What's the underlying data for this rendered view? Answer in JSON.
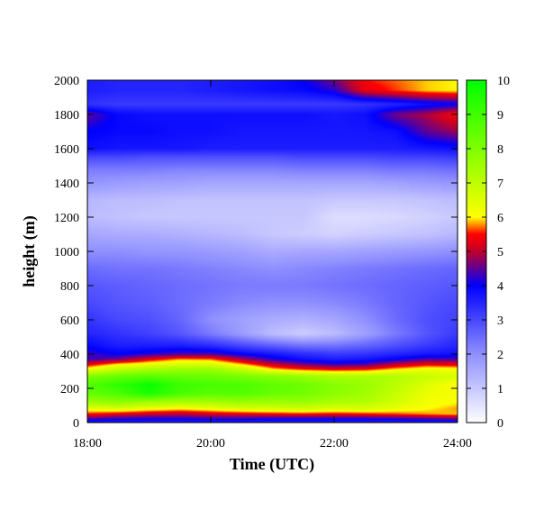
{
  "chart_data": {
    "type": "heatmap",
    "title": "",
    "xlabel": "Time (UTC)",
    "ylabel": "height (m)",
    "xlim": [
      "18:00",
      "24:00"
    ],
    "ylim": [
      0,
      2000
    ],
    "x_ticks": [
      "18:00",
      "20:00",
      "22:00",
      "24:00"
    ],
    "y_ticks": [
      0,
      200,
      400,
      600,
      800,
      1000,
      1200,
      1400,
      1600,
      1800,
      2000
    ],
    "colorbar": {
      "range": [
        0,
        10
      ],
      "ticks": [
        0,
        1,
        2,
        3,
        4,
        5,
        6,
        7,
        8,
        9,
        10
      ],
      "colors": [
        {
          "value": 0,
          "color": "#ffffff"
        },
        {
          "value": 2,
          "color": "#9090ff"
        },
        {
          "value": 4,
          "color": "#0000ff"
        },
        {
          "value": 5,
          "color": "#c0002c"
        },
        {
          "value": 5.5,
          "color": "#ff0000"
        },
        {
          "value": 6,
          "color": "#ffff00"
        },
        {
          "value": 10,
          "color": "#00ff00"
        }
      ]
    },
    "hours": [
      18,
      18.5,
      19,
      19.5,
      20,
      20.5,
      21,
      21.5,
      22,
      22.5,
      23,
      23.5,
      24
    ],
    "profiles": [
      {
        "height": 0,
        "values": [
          3.5,
          3.5,
          3.5,
          3.5,
          3.5,
          3.5,
          3.5,
          3.5,
          3.5,
          3.5,
          3.5,
          3.5,
          3.5
        ]
      },
      {
        "height": 25,
        "values": [
          4.5,
          4.3,
          4.2,
          4.2,
          4.3,
          4.3,
          4.2,
          4.2,
          4.2,
          4.2,
          4.3,
          4.5,
          4.7
        ]
      },
      {
        "height": 50,
        "values": [
          5.5,
          5.3,
          5.1,
          5.0,
          5.2,
          5.3,
          5.4,
          5.5,
          5.4,
          5.5,
          5.6,
          5.8,
          5.9
        ]
      },
      {
        "height": 80,
        "values": [
          6.3,
          6.5,
          6.2,
          6.0,
          6.2,
          6.5,
          6.6,
          6.7,
          6.5,
          6.6,
          6.3,
          6.0,
          5.8
        ]
      },
      {
        "height": 120,
        "values": [
          7.5,
          7.8,
          7.5,
          7.3,
          7.4,
          7.6,
          7.5,
          7.6,
          7.3,
          7.2,
          6.7,
          6.2,
          6.0
        ]
      },
      {
        "height": 170,
        "values": [
          8.4,
          8.8,
          9.6,
          8.9,
          8.6,
          8.7,
          8.4,
          8.2,
          7.8,
          7.5,
          6.9,
          6.3,
          6.1
        ]
      },
      {
        "height": 220,
        "values": [
          8.7,
          9.3,
          9.9,
          9.1,
          8.9,
          8.8,
          8.5,
          8.3,
          7.9,
          7.6,
          7.1,
          6.5,
          6.0
        ]
      },
      {
        "height": 270,
        "values": [
          8.0,
          8.4,
          8.6,
          8.4,
          8.3,
          8.1,
          7.9,
          7.6,
          7.3,
          7.3,
          7.2,
          6.9,
          6.6
        ]
      },
      {
        "height": 310,
        "values": [
          6.3,
          7.0,
          7.4,
          7.6,
          7.6,
          7.0,
          6.0,
          5.6,
          5.4,
          5.5,
          6.0,
          6.3,
          6.2
        ]
      },
      {
        "height": 340,
        "values": [
          5.3,
          6.0,
          6.3,
          6.6,
          6.6,
          5.9,
          5.1,
          4.6,
          4.3,
          4.4,
          5.0,
          5.4,
          5.3
        ]
      },
      {
        "height": 370,
        "values": [
          4.3,
          4.6,
          5.3,
          5.8,
          5.7,
          4.9,
          4.2,
          3.8,
          3.6,
          3.7,
          4.0,
          4.4,
          4.4
        ]
      },
      {
        "height": 400,
        "values": [
          4.3,
          4.0,
          4.2,
          4.4,
          4.4,
          4.0,
          3.7,
          3.4,
          3.2,
          3.3,
          3.5,
          3.7,
          3.8
        ]
      },
      {
        "height": 450,
        "values": [
          3.9,
          3.6,
          3.6,
          3.6,
          3.4,
          3.0,
          2.7,
          2.4,
          2.4,
          2.6,
          2.9,
          3.2,
          3.5
        ]
      },
      {
        "height": 520,
        "values": [
          3.5,
          3.3,
          3.1,
          2.8,
          2.3,
          1.8,
          1.2,
          0.9,
          1.2,
          1.7,
          2.3,
          2.8,
          3.2
        ]
      },
      {
        "height": 600,
        "values": [
          3.3,
          3.0,
          2.9,
          2.6,
          2.0,
          1.7,
          1.5,
          1.4,
          1.6,
          2.0,
          2.5,
          2.9,
          3.1
        ]
      },
      {
        "height": 700,
        "values": [
          3.0,
          2.8,
          2.7,
          2.5,
          2.3,
          2.1,
          2.0,
          2.0,
          2.1,
          2.3,
          2.6,
          2.8,
          3.0
        ]
      },
      {
        "height": 800,
        "values": [
          2.8,
          2.7,
          2.6,
          2.5,
          2.4,
          2.3,
          2.3,
          2.3,
          2.4,
          2.5,
          2.6,
          2.7,
          2.8
        ]
      },
      {
        "height": 900,
        "values": [
          2.5,
          2.4,
          2.4,
          2.3,
          2.2,
          2.1,
          2.0,
          2.1,
          2.2,
          2.3,
          2.4,
          2.5,
          2.6
        ]
      },
      {
        "height": 1000,
        "values": [
          2.0,
          2.0,
          1.9,
          1.9,
          1.8,
          1.7,
          1.5,
          1.6,
          1.6,
          1.7,
          1.8,
          1.9,
          2.0
        ]
      },
      {
        "height": 1100,
        "values": [
          1.6,
          1.5,
          1.5,
          1.4,
          1.3,
          1.2,
          1.0,
          0.9,
          0.8,
          0.9,
          1.0,
          1.1,
          1.3
        ]
      },
      {
        "height": 1200,
        "values": [
          1.2,
          1.1,
          1.0,
          1.0,
          1.0,
          1.0,
          1.0,
          1.0,
          0.6,
          0.6,
          0.7,
          0.8,
          1.0
        ]
      },
      {
        "height": 1300,
        "values": [
          1.3,
          1.2,
          1.2,
          1.1,
          1.1,
          1.1,
          1.1,
          1.1,
          1.0,
          1.0,
          1.0,
          1.1,
          1.2
        ]
      },
      {
        "height": 1400,
        "values": [
          1.9,
          1.8,
          1.7,
          1.7,
          1.6,
          1.6,
          1.6,
          1.6,
          1.6,
          1.6,
          1.7,
          1.8,
          1.9
        ]
      },
      {
        "height": 1480,
        "values": [
          2.3,
          2.3,
          2.3,
          2.2,
          2.2,
          2.2,
          2.2,
          2.3,
          2.3,
          2.3,
          2.4,
          2.4,
          2.5
        ]
      },
      {
        "height": 1550,
        "values": [
          3.0,
          3.0,
          2.9,
          2.9,
          2.9,
          2.9,
          2.9,
          3.0,
          3.0,
          3.0,
          3.1,
          3.1,
          3.2
        ]
      },
      {
        "height": 1600,
        "values": [
          3.8,
          3.7,
          3.7,
          3.7,
          3.6,
          3.6,
          3.6,
          3.6,
          3.6,
          3.6,
          3.6,
          3.7,
          3.8
        ]
      },
      {
        "height": 1700,
        "values": [
          4.0,
          3.9,
          3.9,
          3.8,
          3.8,
          3.7,
          3.7,
          3.7,
          3.7,
          3.7,
          3.8,
          4.5,
          4.8
        ]
      },
      {
        "height": 1800,
        "values": [
          4.5,
          3.9,
          3.8,
          3.8,
          3.8,
          3.8,
          3.8,
          3.8,
          3.7,
          3.8,
          4.6,
          4.9,
          5.5
        ]
      },
      {
        "height": 1860,
        "values": [
          3.3,
          3.2,
          3.2,
          3.2,
          3.2,
          3.2,
          3.2,
          3.2,
          3.2,
          3.3,
          3.5,
          3.8,
          4.0
        ]
      },
      {
        "height": 1940,
        "values": [
          3.6,
          3.5,
          3.5,
          3.5,
          3.6,
          3.7,
          3.8,
          3.9,
          4.2,
          5.3,
          5.6,
          5.9,
          6.0
        ]
      },
      {
        "height": 2000,
        "values": [
          3.6,
          3.5,
          3.5,
          3.5,
          3.6,
          3.7,
          3.8,
          4.0,
          4.6,
          5.5,
          5.7,
          5.9,
          6.0
        ]
      }
    ]
  }
}
